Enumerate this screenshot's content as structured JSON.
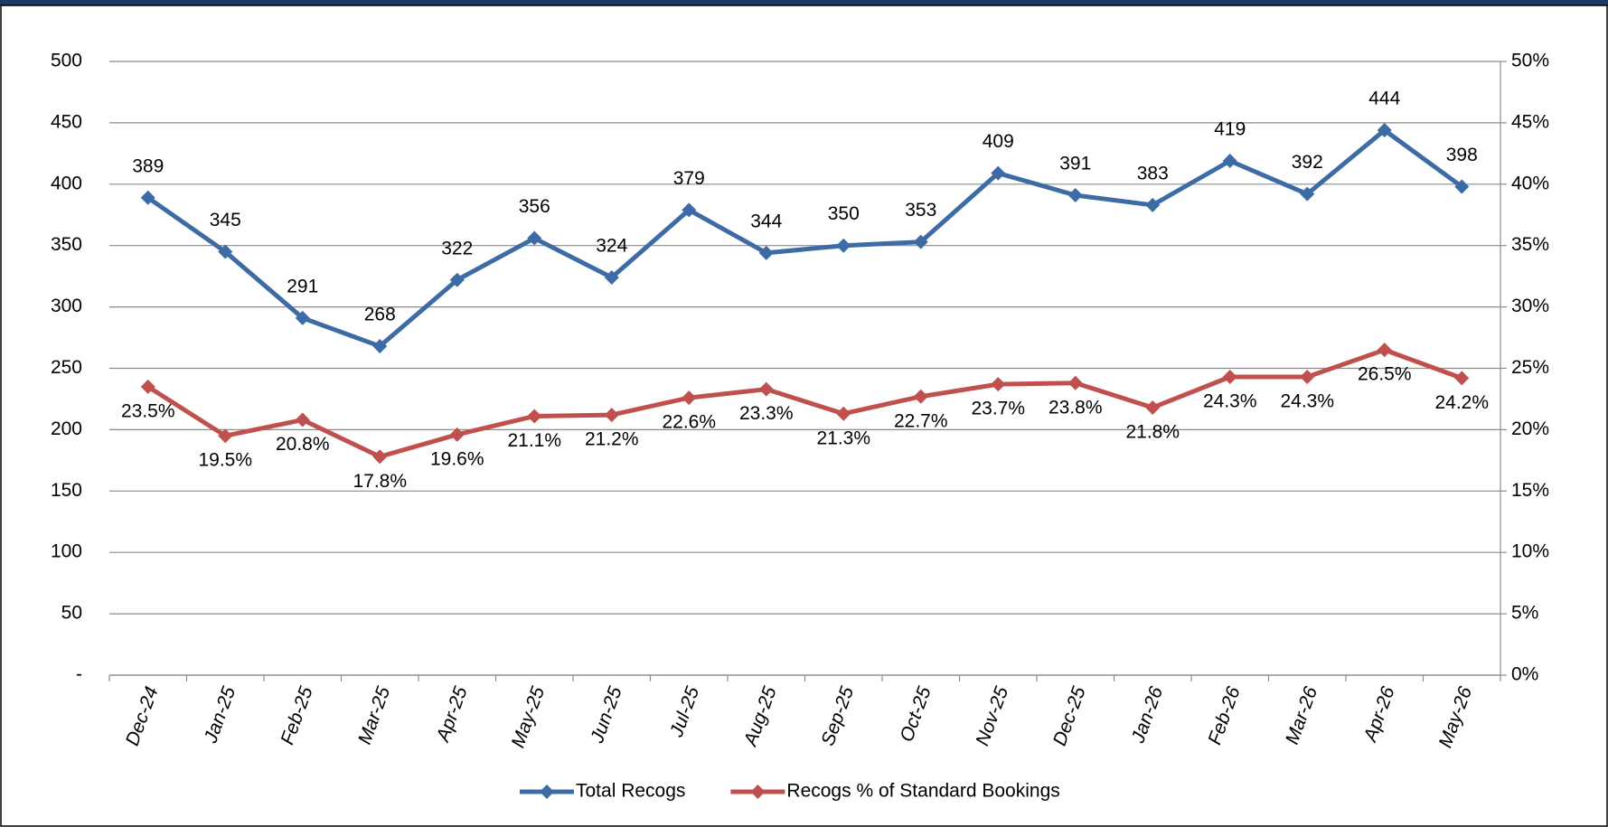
{
  "chart_data": {
    "type": "line",
    "categories": [
      "Dec-24",
      "Jan-25",
      "Feb-25",
      "Mar-25",
      "Apr-25",
      "May-25",
      "Jun-25",
      "Jul-25",
      "Aug-25",
      "Sep-25",
      "Oct-25",
      "Nov-25",
      "Dec-25",
      "Jan-26",
      "Feb-26",
      "Mar-26",
      "Apr-26",
      "May-26"
    ],
    "series": [
      {
        "name": "Total Recogs",
        "color": "#3d6ba6",
        "axis": "y",
        "values": [
          389,
          345,
          291,
          268,
          322,
          356,
          324,
          379,
          344,
          350,
          353,
          409,
          391,
          383,
          419,
          392,
          444,
          398
        ]
      },
      {
        "name": "Recogs % of Standard Bookings",
        "color": "#c0504d",
        "axis": "y2",
        "values": [
          23.5,
          19.5,
          20.8,
          17.8,
          19.6,
          21.1,
          21.2,
          22.6,
          23.3,
          21.3,
          22.7,
          23.7,
          23.8,
          21.8,
          24.3,
          24.3,
          26.5,
          24.2
        ],
        "value_labels": [
          "23.5%",
          "19.5%",
          "20.8%",
          "17.8%",
          "19.6%",
          "21.1%",
          "21.2%",
          "22.6%",
          "23.3%",
          "21.3%",
          "22.7%",
          "23.7%",
          "23.8%",
          "21.8%",
          "24.3%",
          "24.3%",
          "26.5%",
          "24.2%"
        ]
      }
    ],
    "ylim": [
      0,
      500
    ],
    "yticks": [
      {
        "value": 0,
        "label": "-"
      },
      50,
      100,
      150,
      200,
      250,
      300,
      350,
      400,
      450,
      500
    ],
    "y2lim": [
      0,
      50
    ],
    "y2ticks": [
      {
        "value": 0,
        "label": "0%"
      },
      {
        "value": 5,
        "label": "5%"
      },
      {
        "value": 10,
        "label": "10%"
      },
      {
        "value": 15,
        "label": "15%"
      },
      {
        "value": 20,
        "label": "20%"
      },
      {
        "value": 25,
        "label": "25%"
      },
      {
        "value": 30,
        "label": "30%"
      },
      {
        "value": 35,
        "label": "35%"
      },
      {
        "value": 40,
        "label": "40%"
      },
      {
        "value": 45,
        "label": "45%"
      },
      {
        "value": 50,
        "label": "50%"
      }
    ],
    "grid": true,
    "legend": "bottom"
  }
}
